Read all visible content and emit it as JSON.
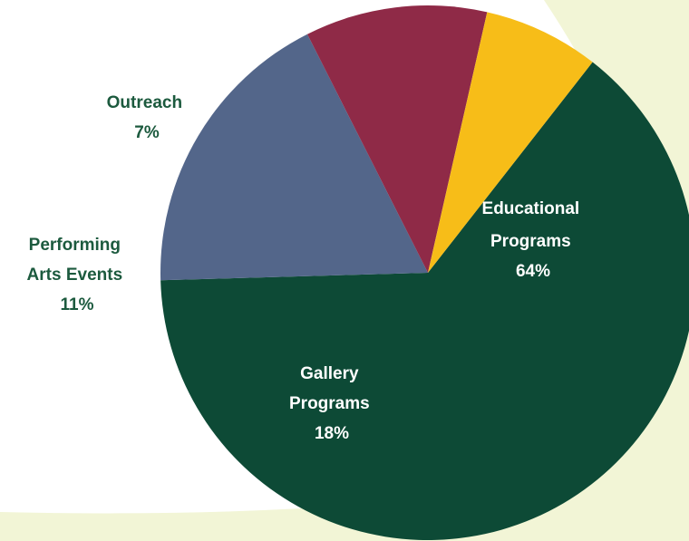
{
  "chart_data": {
    "type": "pie",
    "slices": [
      {
        "label_lines": [
          "Educational",
          "Programs"
        ],
        "value": 64,
        "value_label": "64%",
        "color": "#0d4a36"
      },
      {
        "label_lines": [
          "Gallery",
          "Programs"
        ],
        "value": 18,
        "value_label": "18%",
        "color": "#53668a"
      },
      {
        "label_lines": [
          "Performing",
          "Arts Events"
        ],
        "value": 11,
        "value_label": "11%",
        "color": "#8f2a47"
      },
      {
        "label_lines": [
          "Outreach"
        ],
        "value": 7,
        "value_label": "7%",
        "color": "#f7bd18"
      }
    ],
    "inside_label_color": "#ffffff",
    "outside_label_color": "#1c5a3e",
    "background_accent_color": "#f2f5d6"
  }
}
